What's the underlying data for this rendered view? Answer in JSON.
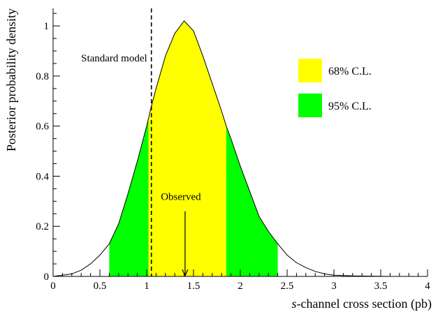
{
  "chart_data": {
    "type": "area",
    "title": "",
    "xlabel_italic": "s",
    "xlabel_rest": "-channel cross section (pb)",
    "ylabel": "Posterior probability density",
    "xlim": [
      0,
      4
    ],
    "ylim": [
      0,
      1.07
    ],
    "xticks": [
      0,
      0.5,
      1,
      1.5,
      2,
      2.5,
      3,
      3.5,
      4
    ],
    "xtick_labels": [
      "0",
      "0.5",
      "1",
      "1.5",
      "2",
      "2.5",
      "3",
      "3.5",
      "4"
    ],
    "yticks": [
      0,
      0.2,
      0.4,
      0.6,
      0.8,
      1
    ],
    "ytick_labels": [
      "0",
      "0.2",
      "0.4",
      "0.6",
      "0.8",
      "1"
    ],
    "grid": false,
    "legend_position": "top-right",
    "curve": {
      "x": [
        0.0,
        0.1,
        0.2,
        0.3,
        0.4,
        0.5,
        0.6,
        0.7,
        0.8,
        0.9,
        1.0,
        1.05,
        1.1,
        1.2,
        1.3,
        1.4,
        1.5,
        1.6,
        1.7,
        1.8,
        1.85,
        1.9,
        2.0,
        2.1,
        2.2,
        2.3,
        2.4,
        2.5,
        2.6,
        2.7,
        2.8,
        2.9,
        3.0,
        3.2,
        3.4,
        3.6,
        4.0
      ],
      "y": [
        0.0,
        0.005,
        0.01,
        0.025,
        0.05,
        0.085,
        0.13,
        0.21,
        0.33,
        0.46,
        0.6,
        0.68,
        0.75,
        0.88,
        0.97,
        1.02,
        0.98,
        0.88,
        0.77,
        0.66,
        0.6,
        0.55,
        0.44,
        0.34,
        0.24,
        0.18,
        0.13,
        0.085,
        0.055,
        0.035,
        0.02,
        0.01,
        0.005,
        0.002,
        0.001,
        0.0,
        0.0
      ]
    },
    "bands": [
      {
        "name": "95% C.L.",
        "color": "#00ff00",
        "ranges": [
          [
            0.6,
            1.02
          ],
          [
            1.85,
            2.4
          ]
        ]
      },
      {
        "name": "68% C.L.",
        "color": "#ffff00",
        "ranges": [
          [
            1.02,
            1.85
          ]
        ]
      }
    ],
    "legend": [
      {
        "label": "68% C.L.",
        "color": "#ffff00"
      },
      {
        "label": "95% C.L.",
        "color": "#00ff00"
      }
    ],
    "standard_model": {
      "label": "Standard model",
      "x": 1.05
    },
    "observed": {
      "label": "Observed",
      "x": 1.41,
      "arrow_from_y": 0.26,
      "arrow_to_y": 0.0
    }
  }
}
